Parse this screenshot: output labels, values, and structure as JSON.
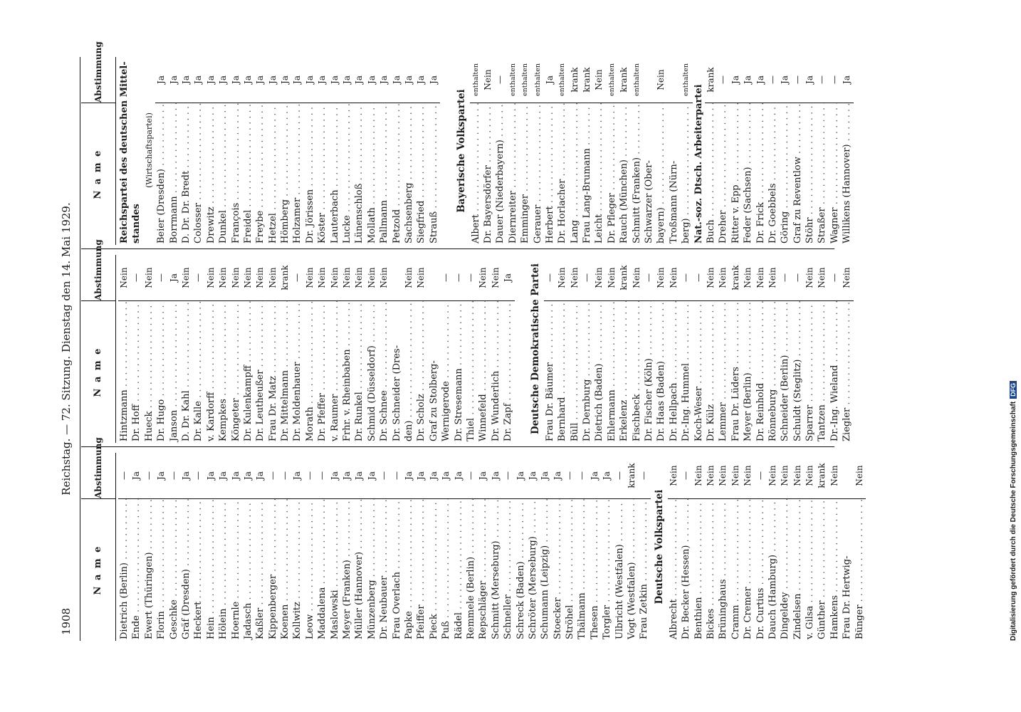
{
  "header": {
    "page_number": "1908",
    "title": "Reichstag. — 72. Sitzung. Dienstag den 14. Mai 1929."
  },
  "columns_head": {
    "name": "N a m e",
    "vote": "Abstimmung"
  },
  "footer_note": "Digitalisierung gefördert durch die Deutsche Forschungsgemeinschaft",
  "footer_logo": "DFG",
  "col1": [
    {
      "n": "Dietrich (Berlin)",
      "v": "—"
    },
    {
      "n": "Ende",
      "v": "Ja"
    },
    {
      "n": "Ewert (Thüringen)",
      "v": "—"
    },
    {
      "n": "Florin",
      "v": "Ja"
    },
    {
      "n": "Geschke",
      "v": "—"
    },
    {
      "n": "Gräf (Dresden)",
      "v": "Ja"
    },
    {
      "n": "Heckert",
      "v": "—"
    },
    {
      "n": "Hein",
      "v": "Ja"
    },
    {
      "n": "Hölein",
      "v": "Ja"
    },
    {
      "n": "Hoernle",
      "v": "Ja"
    },
    {
      "n": "Jadasch",
      "v": "Ja"
    },
    {
      "n": "Kaßler",
      "v": "Ja"
    },
    {
      "n": "Kippenberger",
      "v": "—"
    },
    {
      "n": "Koenen",
      "v": "—"
    },
    {
      "n": "Kollwitz",
      "v": "Ja"
    },
    {
      "n": "Leow",
      "v": "—"
    },
    {
      "n": "Maddalena",
      "v": "—"
    },
    {
      "n": "Maslowski",
      "v": "Ja"
    },
    {
      "n": "Meyer (Franken)",
      "v": "Ja"
    },
    {
      "n": "Müller (Hannover)",
      "v": "Ja"
    },
    {
      "n": "Münzenberg",
      "v": "Ja"
    },
    {
      "n": "Dr. Neubauer",
      "v": "—"
    },
    {
      "n": "Frau Overlach",
      "v": "—"
    },
    {
      "n": "Papke",
      "v": "Ja"
    },
    {
      "n": "Pfeiffer",
      "v": "Ja"
    },
    {
      "n": "Pieck",
      "v": "Ja"
    },
    {
      "n": "Puß",
      "v": "Ja"
    },
    {
      "n": "Rädel",
      "v": "Ja"
    },
    {
      "n": "Remmele (Berlin)",
      "v": "—"
    },
    {
      "n": "Repschläger",
      "v": "Ja"
    },
    {
      "n": "Schmitt (Merseburg)",
      "v": "Ja"
    },
    {
      "n": "Schneller",
      "v": "—"
    },
    {
      "n": "Schreck (Baden)",
      "v": "Ja"
    },
    {
      "n": "Schröter (Merseburg)",
      "v": "Ja"
    },
    {
      "n": "Schumann (Leipzig)",
      "v": "Ja"
    },
    {
      "n": "Stoecker",
      "v": "Ja"
    },
    {
      "n": "Ströhel",
      "v": "—"
    },
    {
      "n": "Thälmann",
      "v": "—"
    },
    {
      "n": "Thesen",
      "v": "Ja"
    },
    {
      "n": "Torgler",
      "v": "Ja"
    },
    {
      "n": "Ulbricht (Westfalen)",
      "v": "—"
    },
    {
      "n": "Vogt (Westfalen)",
      "v": "krank"
    },
    {
      "n": "Frau Zetkin",
      "v": "—"
    },
    {
      "party": "Deutsche Volkspartei"
    },
    {
      "n": "Albrecht",
      "v": "Nein"
    },
    {
      "n": "Dr. Becker (Hessen)",
      "v": "—"
    },
    {
      "n": "Benthien",
      "v": "Nein"
    },
    {
      "n": "Bickes",
      "v": "Nein"
    },
    {
      "n": "Brüninghaus",
      "v": "Nein"
    },
    {
      "n": "Cramm",
      "v": "Nein"
    },
    {
      "n": "Dr. Cremer",
      "v": "Nein"
    },
    {
      "n": "Dr. Curtius",
      "v": "—"
    },
    {
      "n": "Dauch (Hamburg)",
      "v": "Nein"
    },
    {
      "n": "Dingeldey",
      "v": "Nein"
    },
    {
      "n": "Zindelsen",
      "v": "Nein"
    },
    {
      "n": "v. Gilsa",
      "v": "Nein"
    },
    {
      "n": "Günther",
      "v": "krank"
    },
    {
      "n": "Hamkens",
      "v": "Nein"
    },
    {
      "n": "Frau Dr. Hertwig-",
      "v": "",
      "cont": true
    },
    {
      "n": "     Bünger",
      "v": "Nein"
    }
  ],
  "col2": [
    {
      "n": "Hintzmann",
      "v": "Nein"
    },
    {
      "n": "Dr. Hoff",
      "v": "—"
    },
    {
      "n": "Hueck",
      "v": "Nein"
    },
    {
      "n": "Dr. Hugo",
      "v": "—"
    },
    {
      "n": "Janson",
      "v": "Ja"
    },
    {
      "n": "D. Dr. Kahl",
      "v": "Nein"
    },
    {
      "n": "Dr. Kalle",
      "v": "—"
    },
    {
      "n": "v. Kardorff",
      "v": "Nein"
    },
    {
      "n": "Kempkes",
      "v": "Nein"
    },
    {
      "n": "Köngeter",
      "v": "Nein"
    },
    {
      "n": "Dr. Kulenkampff",
      "v": "Nein"
    },
    {
      "n": "Dr. Leutheußer",
      "v": "Nein"
    },
    {
      "n": "Frau Dr. Matz",
      "v": "Nein"
    },
    {
      "n": "Dr. Mittelmann",
      "v": "krank"
    },
    {
      "n": "Dr. Moldenhauer",
      "v": "—"
    },
    {
      "n": "Morath",
      "v": "Nein"
    },
    {
      "n": "Dr. Pfeffer",
      "v": "Nein"
    },
    {
      "n": "v. Raumer",
      "v": "Nein"
    },
    {
      "n": "Frhr. v. Rheinbaben",
      "v": "Nein"
    },
    {
      "n": "Dr. Runkel",
      "v": "Nein"
    },
    {
      "n": "Schmid (Düsseldorf)",
      "v": "Nein"
    },
    {
      "n": "Dr. Schnee",
      "v": "Nein"
    },
    {
      "n": "Dr. Schneider (Dres-",
      "v": "",
      "cont": true
    },
    {
      "n": "   den)",
      "v": "Nein"
    },
    {
      "n": "Dr. Scholz",
      "v": "Nein"
    },
    {
      "n": "Graf zu Stolberg-",
      "v": "",
      "cont": true
    },
    {
      "n": "   Wernigerode",
      "v": "—"
    },
    {
      "n": "Dr. Stresemann",
      "v": "—"
    },
    {
      "n": "Thiel",
      "v": "—"
    },
    {
      "n": "Winnefeld",
      "v": "Nein"
    },
    {
      "n": "Dr. Wunderlich",
      "v": "Nein"
    },
    {
      "n": "Dr. Zapf",
      "v": "Ja"
    },
    {
      "blank": true
    },
    {
      "party": "Deutsche Demokratische Partei"
    },
    {
      "n": "Frau Dr. Bäumer",
      "v": "—"
    },
    {
      "n": "Bernhard",
      "v": "Nein"
    },
    {
      "n": "Büll",
      "v": "Nein"
    },
    {
      "n": "Dr. Dernburg",
      "v": "—"
    },
    {
      "n": "Dietrich (Baden)",
      "v": "Nein"
    },
    {
      "n": "Ehlermann",
      "v": "Nein"
    },
    {
      "n": "Erkelenz",
      "v": "krank"
    },
    {
      "n": "Fischbeck",
      "v": "Nein"
    },
    {
      "n": "Dr. Fischer (Köln)",
      "v": "—"
    },
    {
      "n": "Dr. Haas (Baden)",
      "v": "Nein"
    },
    {
      "n": "Dr. Hellpach",
      "v": "Nein"
    },
    {
      "n": "Dr.-Ing. Hummel",
      "v": "—"
    },
    {
      "n": "Koch-Weser",
      "v": "—"
    },
    {
      "n": "Dr. Külz",
      "v": "Nein"
    },
    {
      "n": "Lemmer",
      "v": "Nein"
    },
    {
      "n": "Frau Dr. Lüders",
      "v": "krank"
    },
    {
      "n": "Meyer (Berlin)",
      "v": "Nein"
    },
    {
      "n": "Dr. Reinhold",
      "v": "Nein"
    },
    {
      "n": "Rönneburg",
      "v": "Nein"
    },
    {
      "n": "Schneider (Berlin)",
      "v": "—"
    },
    {
      "n": "Schuldt (Steglitz)",
      "v": "—"
    },
    {
      "n": "Sparrer",
      "v": "Nein"
    },
    {
      "n": "Tantzen",
      "v": "Nein"
    },
    {
      "n": "Dr.-Ing. Wieland",
      "v": "—"
    },
    {
      "n": "Ziegler",
      "v": "Nein"
    }
  ],
  "col3": [
    {
      "partyfull": "Reichspartei des deutschen Mittel-"
    },
    {
      "partyfull": "standes"
    },
    {
      "small": "(Wirtschaftspartei)"
    },
    {
      "n": "Beier (Dresden)",
      "v": "Ja"
    },
    {
      "n": "Borrmann",
      "v": "Ja"
    },
    {
      "n": "D. Dr. Dr. Bredt",
      "v": "Ja"
    },
    {
      "n": "Colosser",
      "v": "Ja"
    },
    {
      "n": "Drewitz",
      "v": "Ja"
    },
    {
      "n": "Dunkel",
      "v": "Ja"
    },
    {
      "n": "François",
      "v": "Ja"
    },
    {
      "n": "Freidel",
      "v": "Ja"
    },
    {
      "n": "Freybe",
      "v": "Ja"
    },
    {
      "n": "Hetzel",
      "v": "Ja"
    },
    {
      "n": "Hömberg",
      "v": "Ja"
    },
    {
      "n": "Holzamer",
      "v": "Ja"
    },
    {
      "n": "Dr. Jörissen",
      "v": "Ja"
    },
    {
      "n": "Köster",
      "v": "Ja"
    },
    {
      "n": "Lauterbach",
      "v": "Ja"
    },
    {
      "n": "Lucke",
      "v": "Ja"
    },
    {
      "n": "Lünenschloß",
      "v": "Ja"
    },
    {
      "n": "Mollath",
      "v": "Ja"
    },
    {
      "n": "Pallmann",
      "v": "Ja"
    },
    {
      "n": "Petzold",
      "v": "Ja"
    },
    {
      "n": "Sachsenberg",
      "v": "Ja"
    },
    {
      "n": "Siegfried",
      "v": "Ja"
    },
    {
      "n": "Strauß",
      "v": "Ja"
    },
    {
      "blank": true
    },
    {
      "party": "Bayerische Volkspartei"
    },
    {
      "n": "Albert",
      "v": "enthalten",
      "sm": true
    },
    {
      "n": "Dr. Bayersdörfer",
      "v": "Nein"
    },
    {
      "n": "Dauer (Niederbayern)",
      "v": "—"
    },
    {
      "n": "Diernreiter",
      "v": "enthalten",
      "sm": true
    },
    {
      "n": "Emminger",
      "v": "enthalten",
      "sm": true
    },
    {
      "n": "Gerauer",
      "v": "enthalten",
      "sm": true
    },
    {
      "n": "Herbert",
      "v": "Ja"
    },
    {
      "n": "Dr. Horlacher",
      "v": "enthalten",
      "sm": true
    },
    {
      "n": "Lang",
      "v": "krank"
    },
    {
      "n": "Frau Lang-Brumann",
      "v": "krank"
    },
    {
      "n": "Leicht",
      "v": "Nein"
    },
    {
      "n": "Dr. Pfleger",
      "v": "enthalten",
      "sm": true
    },
    {
      "n": "Rauch (München)",
      "v": "krank"
    },
    {
      "n": "Schmitt (Franken)",
      "v": "enthalten",
      "sm": true
    },
    {
      "n": "Schwarzer (Ober-",
      "v": "",
      "cont": true
    },
    {
      "n": "   bayern)",
      "v": "Nein"
    },
    {
      "n": "Troßmann (Nürn-",
      "v": "",
      "cont": true
    },
    {
      "n": "   berg)",
      "v": "enthalten",
      "sm": true
    },
    {
      "partyfull": "Nat.-soz. Dtsch. Arbeiterpartei"
    },
    {
      "n": "Buch",
      "v": "krank"
    },
    {
      "n": "Dreher",
      "v": "—"
    },
    {
      "n": "Ritter v. Epp",
      "v": "Ja"
    },
    {
      "n": "Feder (Sachsen)",
      "v": "Ja"
    },
    {
      "n": "Dr. Frick",
      "v": "Ja"
    },
    {
      "n": "Dr. Goebbels",
      "v": "—"
    },
    {
      "n": "Göring",
      "v": "Ja"
    },
    {
      "n": "Graf zu Reventlow",
      "v": "—"
    },
    {
      "n": "Stöhr",
      "v": "Ja"
    },
    {
      "n": "Straßer",
      "v": "—"
    },
    {
      "n": "Wagner",
      "v": "—"
    },
    {
      "n": "Willikens (Hannover)",
      "v": "Ja"
    }
  ]
}
